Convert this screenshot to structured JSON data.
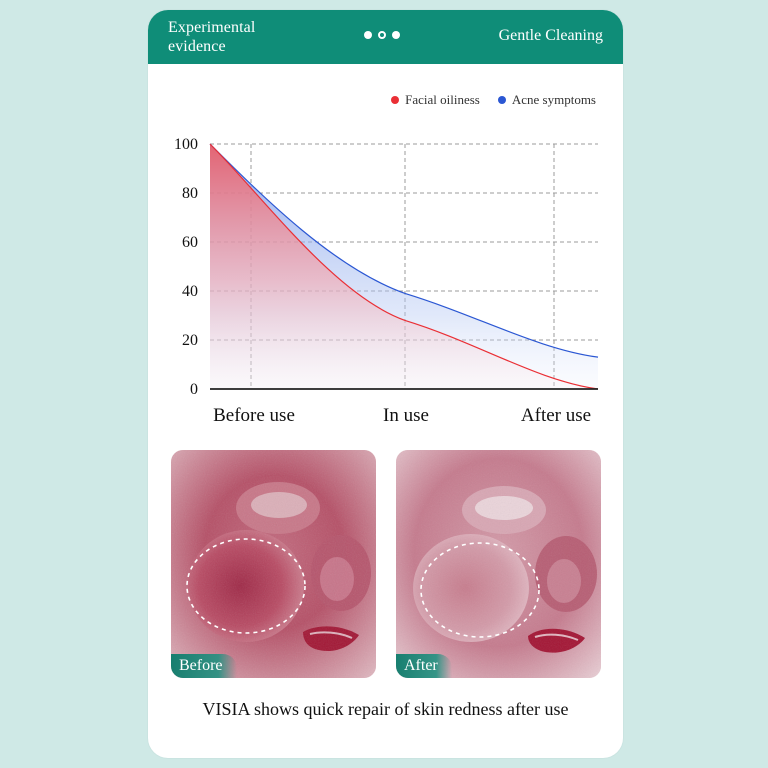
{
  "header": {
    "left_label": "Experimental\nevidence",
    "right_label": "Gentle Cleaning"
  },
  "chart_data": {
    "type": "area",
    "x": [
      "Before use",
      "In use",
      "After use"
    ],
    "series": [
      {
        "name": "Facial oiliness",
        "color": "#ea2f35",
        "values": [
          100,
          28,
          0
        ]
      },
      {
        "name": "Acne symptoms",
        "color": "#2b57d3",
        "values": [
          100,
          39,
          13
        ]
      }
    ],
    "ylim": [
      0,
      100
    ],
    "yticks": [
      0,
      20,
      40,
      60,
      80,
      100
    ],
    "legend": "top-right",
    "grid": true,
    "title": "",
    "xlabel": "",
    "ylabel": ""
  },
  "images": {
    "before_label": "Before",
    "after_label": "After"
  },
  "caption": "VISIA shows quick repair of skin redness after use",
  "colors": {
    "accent": "#0f8d78"
  }
}
